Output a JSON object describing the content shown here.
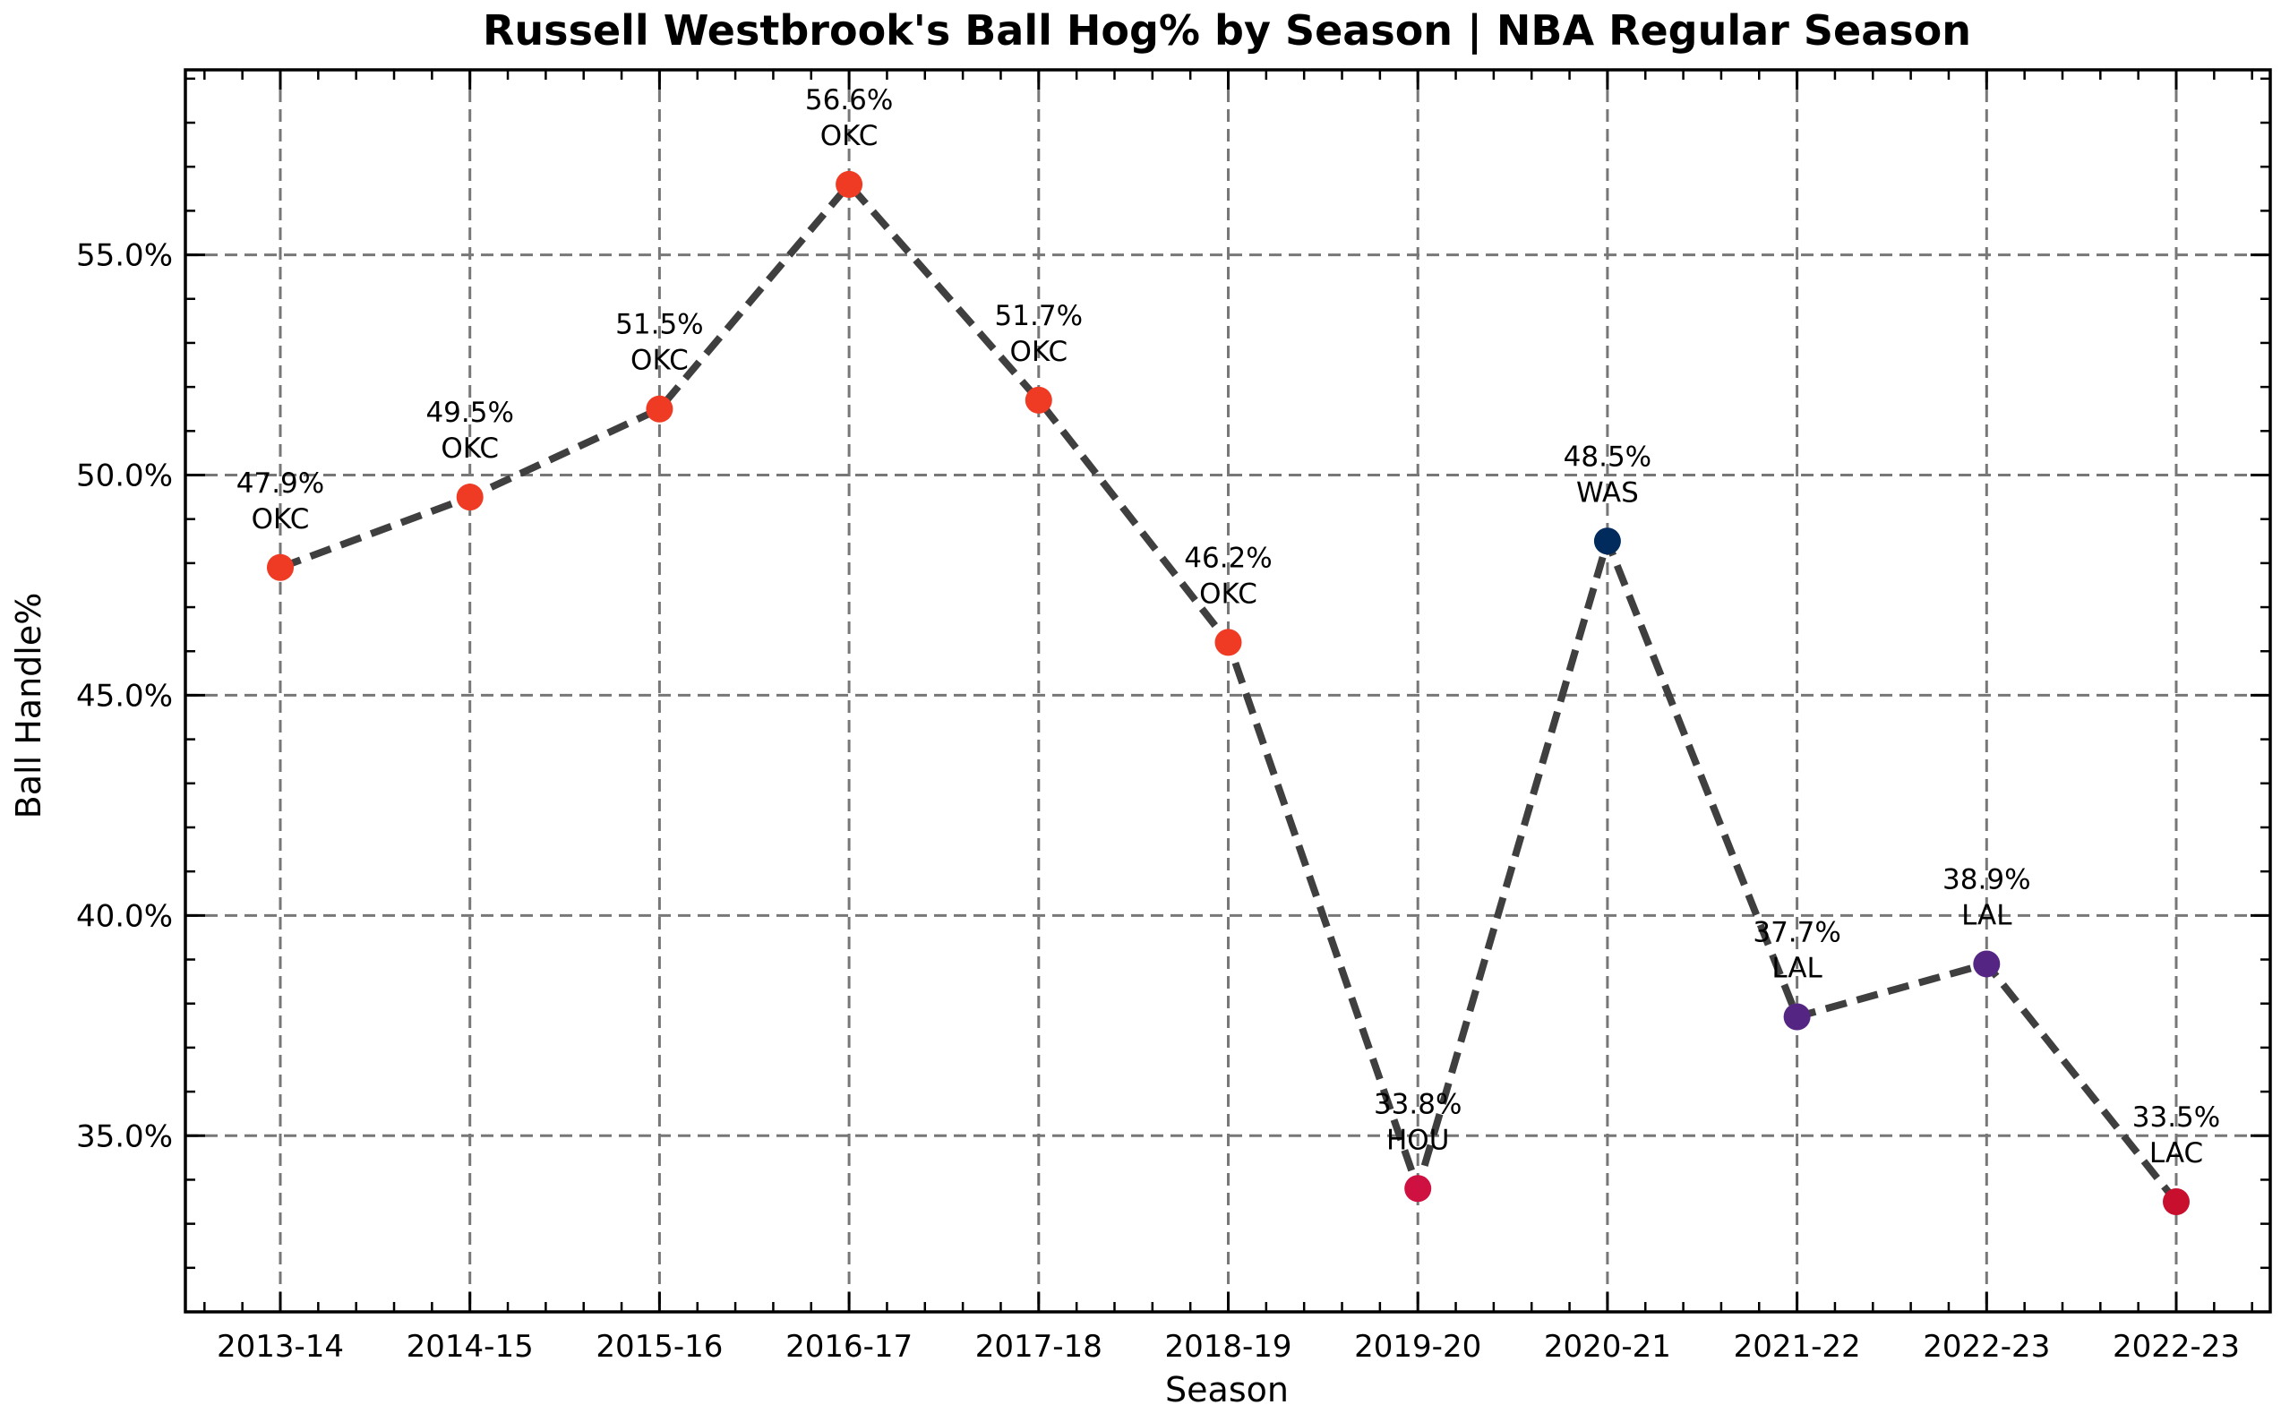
{
  "chart_data": {
    "type": "line",
    "title": "Russell Westbrook's Ball Hog% by Season | NBA Regular Season",
    "xlabel": "Season",
    "ylabel": "Ball Handle%",
    "ylim": [
      31.0,
      59.2
    ],
    "grid": true,
    "yticks": [
      35.0,
      40.0,
      45.0,
      50.0,
      55.0
    ],
    "ytick_labels": [
      "35.0%",
      "40.0%",
      "45.0%",
      "50.0%",
      "55.0%"
    ],
    "points": [
      {
        "season": "2013-14",
        "value": 47.9,
        "label": "47.9%",
        "team": "OKC",
        "color": "#EF3B24"
      },
      {
        "season": "2014-15",
        "value": 49.5,
        "label": "49.5%",
        "team": "OKC",
        "color": "#EF3B24"
      },
      {
        "season": "2015-16",
        "value": 51.5,
        "label": "51.5%",
        "team": "OKC",
        "color": "#EF3B24"
      },
      {
        "season": "2016-17",
        "value": 56.6,
        "label": "56.6%",
        "team": "OKC",
        "color": "#EF3B24"
      },
      {
        "season": "2017-18",
        "value": 51.7,
        "label": "51.7%",
        "team": "OKC",
        "color": "#EF3B24"
      },
      {
        "season": "2018-19",
        "value": 46.2,
        "label": "46.2%",
        "team": "OKC",
        "color": "#EF3B24"
      },
      {
        "season": "2019-20",
        "value": 33.8,
        "label": "33.8%",
        "team": "HOU",
        "color": "#CE1141"
      },
      {
        "season": "2020-21",
        "value": 48.5,
        "label": "48.5%",
        "team": "WAS",
        "color": "#002B5C"
      },
      {
        "season": "2021-22",
        "value": 37.7,
        "label": "37.7%",
        "team": "LAL",
        "color": "#552583"
      },
      {
        "season": "2022-23",
        "value": 38.9,
        "label": "38.9%",
        "team": "LAL",
        "color": "#552583"
      },
      {
        "season": "2022-23",
        "value": 33.5,
        "label": "33.5%",
        "team": "LAC",
        "color": "#C8102E"
      }
    ],
    "line_color": "#3f3f3f",
    "grid_color": "#777777"
  }
}
